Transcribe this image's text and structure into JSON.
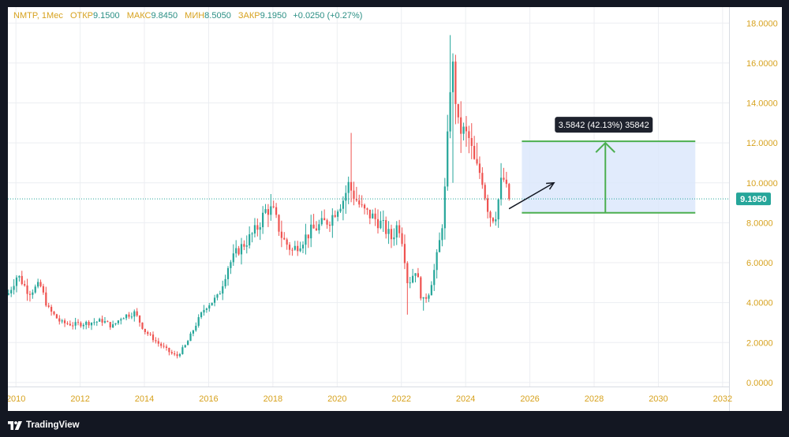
{
  "header": {
    "symbol": "NMTP, 1Мес",
    "open_label": "ОТКР",
    "open_value": "9.1500",
    "high_label": "МАКС",
    "high_value": "9.8450",
    "low_label": "МИН",
    "low_value": "8.5050",
    "close_label": "ЗАКР",
    "close_value": "9.1950",
    "change": "+0.0250 (+0.27%)"
  },
  "brand": {
    "name": "TradingView"
  },
  "colors": {
    "up": "#26a69a",
    "down": "#ef5350",
    "axis_text": "#d7a21e",
    "measure_line": "#4caf50",
    "measure_fill": "#dce8fc",
    "price_line": "#26a69a",
    "tag_bg": "#1e222d",
    "grid": "#eceef2"
  },
  "chart_data": {
    "type": "candlestick",
    "x_range": [
      2009.75,
      2032.2
    ],
    "y_range": [
      -0.2,
      18.8
    ],
    "x_ticks": [
      "2010",
      "2012",
      "2014",
      "2016",
      "2018",
      "2020",
      "2022",
      "2024",
      "2026",
      "2028",
      "2030",
      "2032"
    ],
    "x_tick_values": [
      2010,
      2012,
      2014,
      2016,
      2018,
      2020,
      2022,
      2024,
      2026,
      2028,
      2030,
      2032
    ],
    "y_ticks": [
      "0.0000",
      "2.0000",
      "4.0000",
      "6.0000",
      "8.0000",
      "10.0000",
      "12.0000",
      "14.0000",
      "16.0000",
      "18.0000"
    ],
    "y_tick_values": [
      0,
      2,
      4,
      6,
      8,
      10,
      12,
      14,
      16,
      18
    ],
    "grid": true,
    "last_price": 9.195,
    "last_price_label": "9.1950",
    "anchors": [
      [
        2009.75,
        4.4
      ],
      [
        2010.05,
        5.4
      ],
      [
        2010.4,
        4.5
      ],
      [
        2010.75,
        4.9
      ],
      [
        2011.0,
        3.7
      ],
      [
        2011.4,
        3.0
      ],
      [
        2011.8,
        2.9
      ],
      [
        2012.3,
        3.0
      ],
      [
        2012.7,
        3.1
      ],
      [
        2013.0,
        2.8
      ],
      [
        2013.3,
        3.3
      ],
      [
        2013.7,
        3.5
      ],
      [
        2014.0,
        2.6
      ],
      [
        2014.4,
        2.0
      ],
      [
        2014.8,
        1.5
      ],
      [
        2015.0,
        1.3
      ],
      [
        2015.3,
        1.9
      ],
      [
        2015.6,
        2.9
      ],
      [
        2015.9,
        3.8
      ],
      [
        2016.3,
        4.3
      ],
      [
        2016.6,
        5.8
      ],
      [
        2016.9,
        6.6
      ],
      [
        2017.2,
        7.1
      ],
      [
        2017.5,
        7.7
      ],
      [
        2017.8,
        8.7
      ],
      [
        2018.0,
        8.6
      ],
      [
        2018.3,
        7.2
      ],
      [
        2018.6,
        6.6
      ],
      [
        2018.9,
        7.1
      ],
      [
        2019.2,
        7.6
      ],
      [
        2019.5,
        7.9
      ],
      [
        2019.8,
        8.2
      ],
      [
        2020.0,
        8.8
      ],
      [
        2020.2,
        9.2
      ],
      [
        2020.35,
        9.9
      ],
      [
        2020.55,
        9.3
      ],
      [
        2020.8,
        8.6
      ],
      [
        2021.1,
        8.3
      ],
      [
        2021.4,
        7.9
      ],
      [
        2021.7,
        7.2
      ],
      [
        2021.9,
        8.0
      ],
      [
        2022.05,
        7.0
      ],
      [
        2022.2,
        4.9
      ],
      [
        2022.45,
        5.7
      ],
      [
        2022.65,
        4.0
      ],
      [
        2022.85,
        4.5
      ],
      [
        2023.05,
        5.8
      ],
      [
        2023.25,
        7.6
      ],
      [
        2023.4,
        10.5
      ],
      [
        2023.5,
        14.8
      ],
      [
        2023.62,
        15.8
      ],
      [
        2023.75,
        12.8
      ],
      [
        2023.9,
        12.6
      ],
      [
        2024.1,
        12.2
      ],
      [
        2024.3,
        10.8
      ],
      [
        2024.5,
        10.4
      ],
      [
        2024.65,
        9.0
      ],
      [
        2024.8,
        8.2
      ],
      [
        2024.95,
        8.5
      ],
      [
        2025.15,
        10.4
      ],
      [
        2025.3,
        9.4
      ],
      [
        2025.42,
        9.195
      ]
    ],
    "spikes": [
      {
        "t": 2020.45,
        "high": 12.5
      },
      {
        "t": 2023.55,
        "high": 17.4
      },
      {
        "t": 2023.62,
        "low": 10.0
      },
      {
        "t": 2022.15,
        "low": 3.4
      },
      {
        "t": 2022.65,
        "low": 3.6
      }
    ],
    "measure": {
      "x_start": 2025.75,
      "x_end": 2031.15,
      "y_low": 8.5,
      "y_high": 12.08,
      "arrow_x": 2028.35,
      "label": "3.5842 (42.13%) 35842"
    },
    "trend_arrow": {
      "x0": 2025.35,
      "y0": 8.7,
      "x1": 2026.75,
      "y1": 10.0
    }
  }
}
